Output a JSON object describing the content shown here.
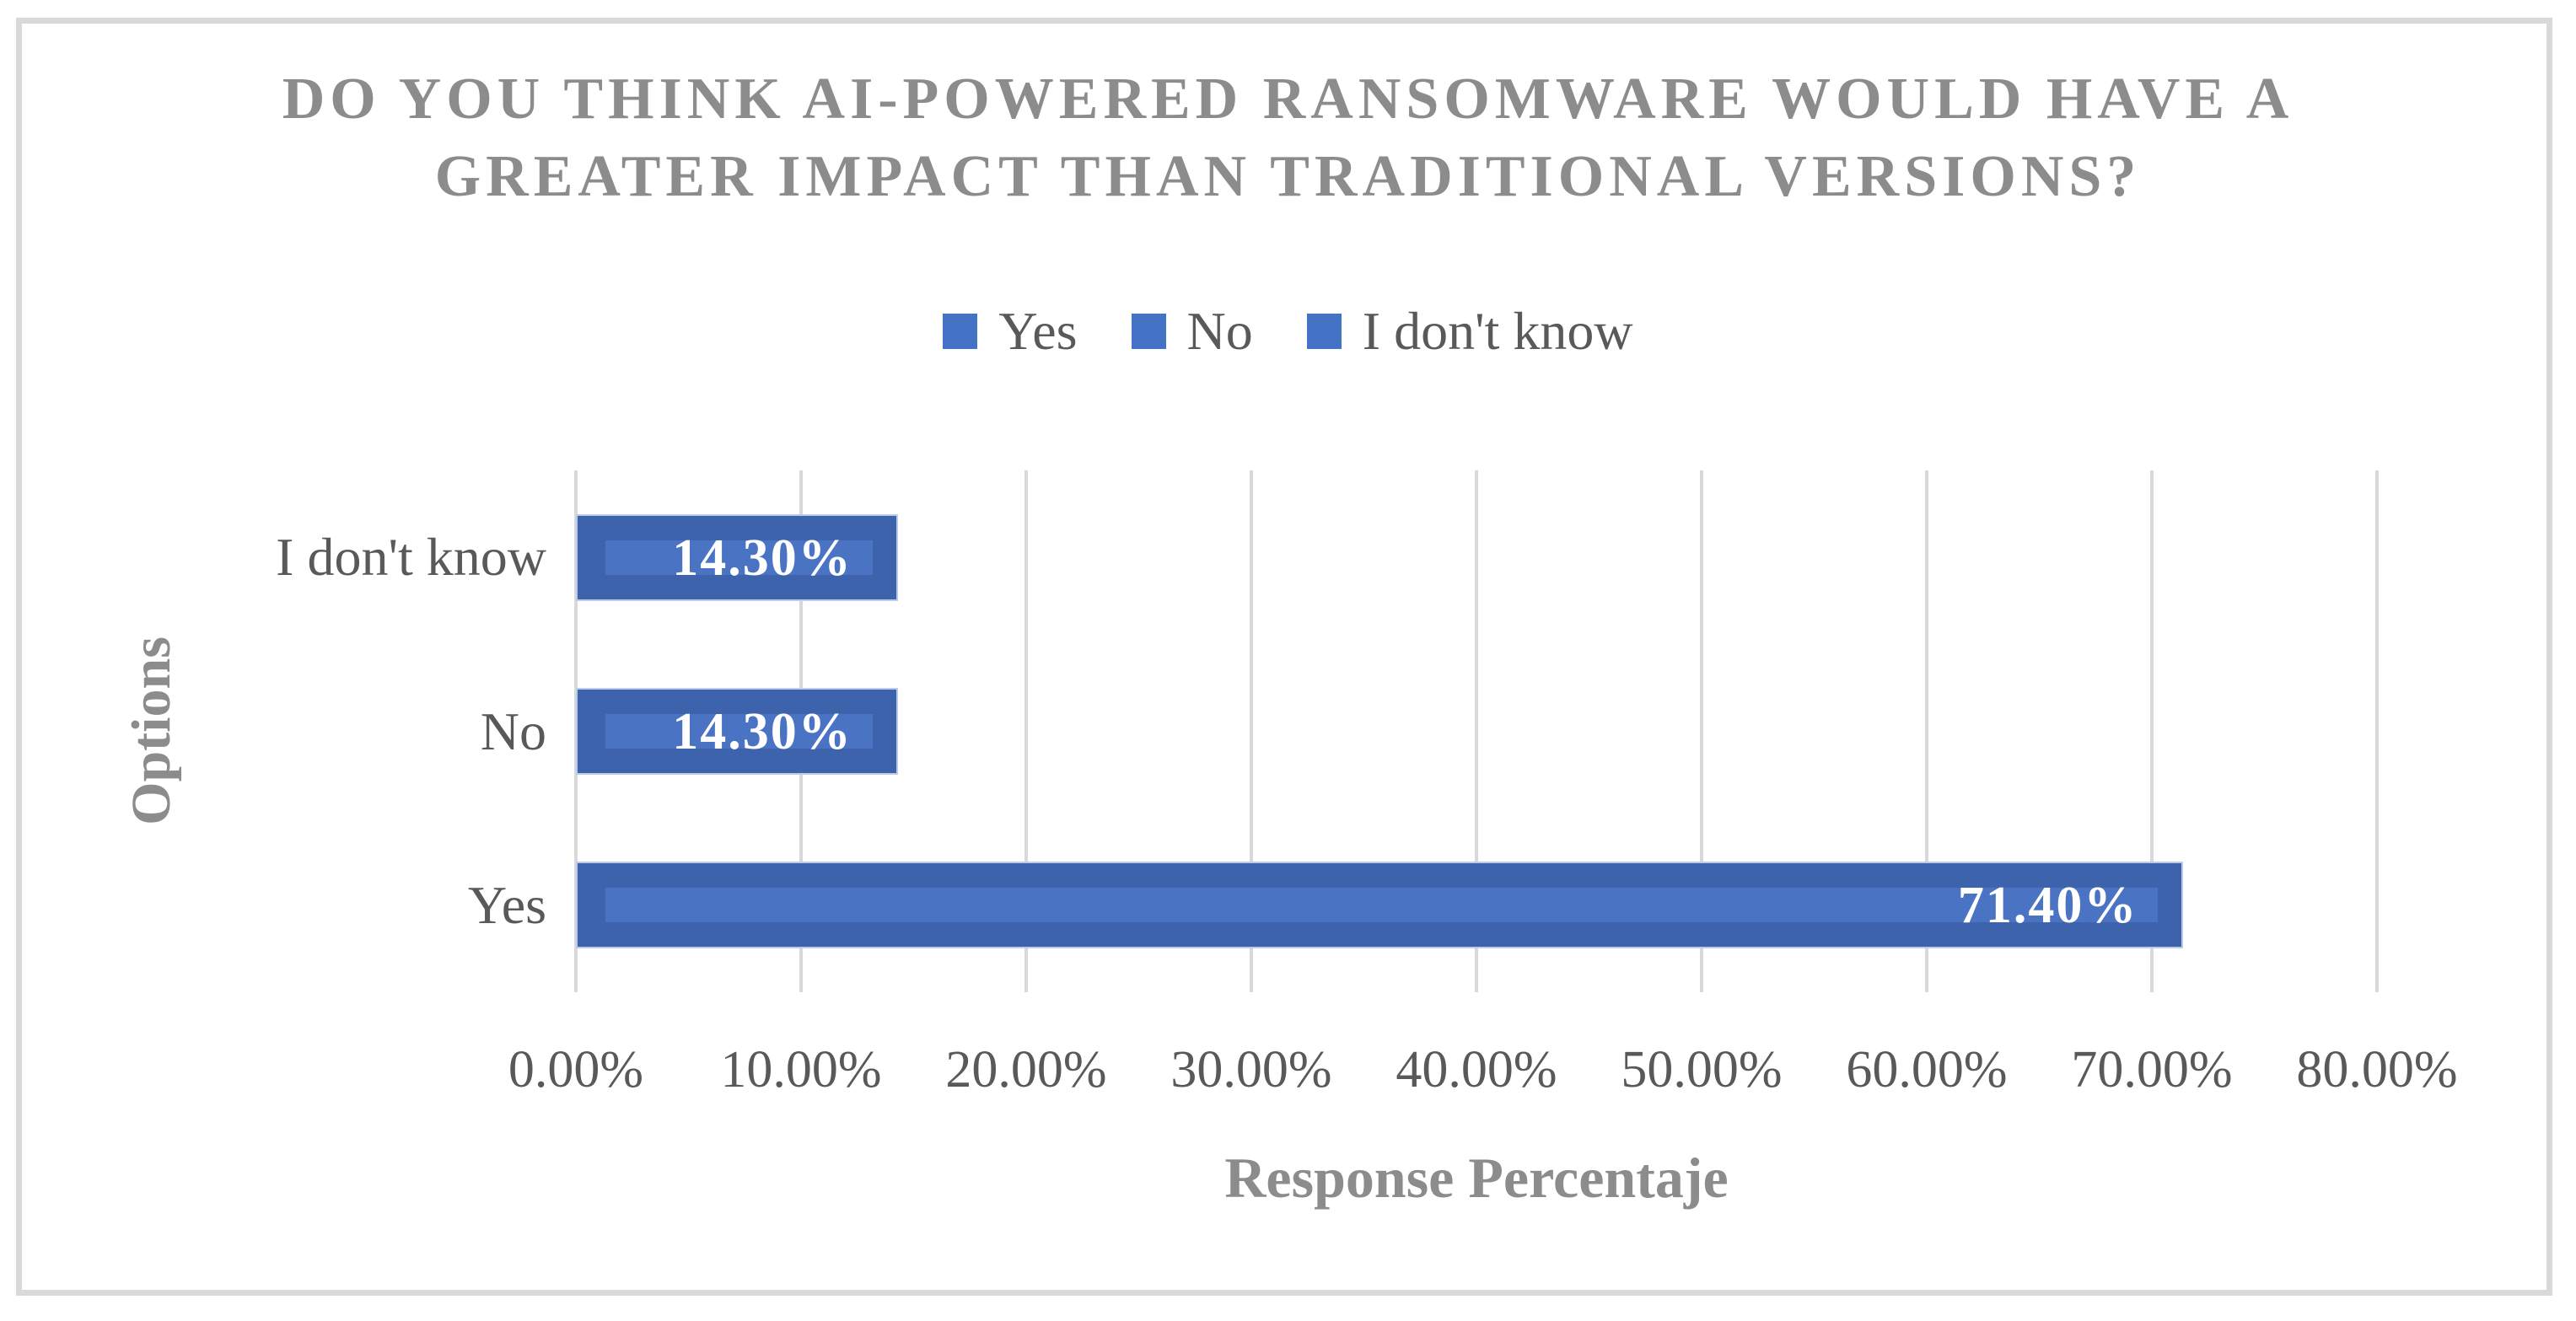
{
  "chart": {
    "title_line1": "DO YOU THINK AI-POWERED RANSOMWARE WOULD HAVE A",
    "title_line2": "GREATER IMPACT THAN TRADITIONAL VERSIONS?",
    "y_axis_title": "Options",
    "x_axis_title": "Response Percentaje"
  },
  "legend": {
    "items": [
      {
        "label": "Yes"
      },
      {
        "label": "No"
      },
      {
        "label": "I don't know"
      }
    ]
  },
  "chart_data": {
    "type": "bar",
    "orientation": "horizontal",
    "title": "DO YOU THINK AI-POWERED RANSOMWARE WOULD HAVE A GREATER IMPACT THAN TRADITIONAL VERSIONS?",
    "categories": [
      "I don't know",
      "No",
      "Yes"
    ],
    "values": [
      14.3,
      14.3,
      71.4
    ],
    "bar_labels": [
      "14.30%",
      "14.30%",
      "71.40%"
    ],
    "series": [
      {
        "name": "Yes",
        "values": [
          71.4
        ]
      },
      {
        "name": "No",
        "values": [
          14.3
        ]
      },
      {
        "name": "I don't know",
        "values": [
          14.3
        ]
      }
    ],
    "legend_entries": [
      "Yes",
      "No",
      "I don't know"
    ],
    "legend_position": "top",
    "xlabel": "Response Percentaje",
    "ylabel": "Options",
    "xlim": [
      0,
      80
    ],
    "x_tick_labels": [
      "0.00%",
      "10.00%",
      "20.00%",
      "30.00%",
      "40.00%",
      "50.00%",
      "60.00%",
      "70.00%",
      "80.00%"
    ],
    "grid": true,
    "data_label_position": "inside-end",
    "colors": {
      "bar": "#3D63AD",
      "bar_inner_highlight": "#4B73C4",
      "bar_border": "#BCCBEA",
      "legend_swatch": "#4472C4",
      "gridline": "#D9D9D9",
      "frame_border": "#D9D9D9",
      "title_text": "#8C8C8C",
      "axis_text": "#595959",
      "data_label_text": "#FFFFFF"
    }
  }
}
